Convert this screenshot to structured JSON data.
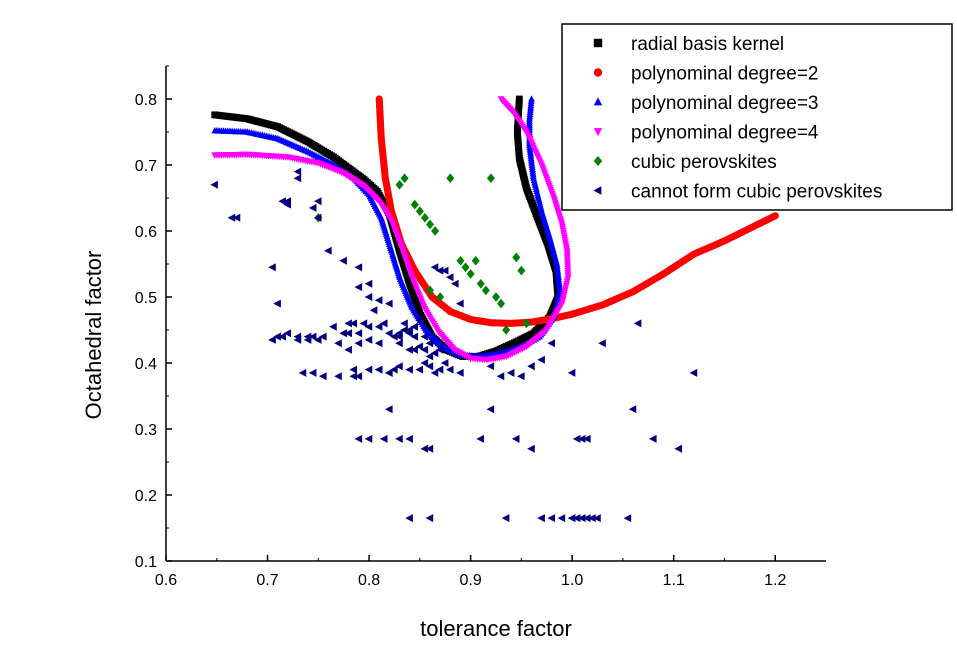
{
  "chart_data": {
    "type": "scatter",
    "xlabel": "tolerance factor",
    "ylabel": "Octahedral factor",
    "xlim": [
      0.6,
      1.25
    ],
    "ylim": [
      0.1,
      0.85
    ],
    "x_ticks": [
      "0.6",
      "0.7",
      "0.8",
      "0.9",
      "1.0",
      "1.1",
      "1.2"
    ],
    "y_ticks": [
      "0.1",
      "0.2",
      "0.3",
      "0.4",
      "0.5",
      "0.6",
      "0.7",
      "0.8"
    ],
    "grid": false,
    "legend_position": "top-right",
    "series": [
      {
        "name": "radial basis kernel",
        "marker": "square",
        "color": "#000000",
        "segments": [
          [
            [
              0.648,
              0.776
            ],
            [
              0.68,
              0.77
            ],
            [
              0.71,
              0.758
            ],
            [
              0.74,
              0.735
            ],
            [
              0.765,
              0.712
            ],
            [
              0.78,
              0.695
            ],
            [
              0.795,
              0.678
            ],
            [
              0.808,
              0.66
            ],
            [
              0.82,
              0.625
            ],
            [
              0.83,
              0.57
            ],
            [
              0.84,
              0.52
            ],
            [
              0.85,
              0.475
            ],
            [
              0.862,
              0.44
            ],
            [
              0.876,
              0.42
            ],
            [
              0.892,
              0.41
            ],
            [
              0.908,
              0.41
            ],
            [
              0.925,
              0.418
            ],
            [
              0.945,
              0.432
            ],
            [
              0.962,
              0.445
            ],
            [
              0.978,
              0.47
            ],
            [
              0.986,
              0.5
            ],
            [
              0.984,
              0.54
            ],
            [
              0.976,
              0.58
            ],
            [
              0.966,
              0.62
            ],
            [
              0.955,
              0.665
            ],
            [
              0.948,
              0.71
            ],
            [
              0.946,
              0.75
            ],
            [
              0.948,
              0.8
            ]
          ]
        ]
      },
      {
        "name": "polynominal degree=2",
        "marker": "circle",
        "color": "#ff0000",
        "segments": [
          [
            [
              0.81,
              0.8
            ],
            [
              0.812,
              0.74
            ],
            [
              0.816,
              0.68
            ],
            [
              0.822,
              0.63
            ],
            [
              0.832,
              0.58
            ],
            [
              0.845,
              0.54
            ],
            [
              0.862,
              0.5
            ],
            [
              0.88,
              0.478
            ],
            [
              0.9,
              0.466
            ],
            [
              0.92,
              0.461
            ],
            [
              0.94,
              0.46
            ],
            [
              0.96,
              0.462
            ],
            [
              0.98,
              0.467
            ],
            [
              1.0,
              0.474
            ],
            [
              1.03,
              0.488
            ],
            [
              1.06,
              0.508
            ],
            [
              1.09,
              0.535
            ],
            [
              1.12,
              0.565
            ],
            [
              1.15,
              0.585
            ],
            [
              1.2,
              0.623
            ]
          ]
        ]
      },
      {
        "name": "polynominal degree=3",
        "marker": "triangle-up",
        "color": "#0000ff",
        "segments": [
          [
            [
              0.648,
              0.752
            ],
            [
              0.68,
              0.75
            ],
            [
              0.71,
              0.74
            ],
            [
              0.74,
              0.72
            ],
            [
              0.765,
              0.7
            ],
            [
              0.785,
              0.68
            ],
            [
              0.8,
              0.655
            ],
            [
              0.812,
              0.62
            ],
            [
              0.82,
              0.58
            ],
            [
              0.83,
              0.53
            ],
            [
              0.842,
              0.485
            ],
            [
              0.856,
              0.45
            ],
            [
              0.872,
              0.425
            ],
            [
              0.89,
              0.412
            ],
            [
              0.91,
              0.41
            ],
            [
              0.93,
              0.415
            ],
            [
              0.95,
              0.425
            ],
            [
              0.968,
              0.44
            ],
            [
              0.982,
              0.47
            ],
            [
              0.988,
              0.51
            ],
            [
              0.985,
              0.55
            ],
            [
              0.978,
              0.59
            ],
            [
              0.97,
              0.63
            ],
            [
              0.962,
              0.68
            ],
            [
              0.958,
              0.73
            ],
            [
              0.958,
              0.77
            ],
            [
              0.96,
              0.8
            ]
          ]
        ]
      },
      {
        "name": "polynominal degree=4",
        "marker": "triangle-down",
        "color": "#ff00ff",
        "segments": [
          [
            [
              0.648,
              0.715
            ],
            [
              0.68,
              0.716
            ],
            [
              0.72,
              0.712
            ],
            [
              0.75,
              0.703
            ],
            [
              0.775,
              0.688
            ],
            [
              0.795,
              0.668
            ],
            [
              0.81,
              0.645
            ],
            [
              0.822,
              0.615
            ],
            [
              0.832,
              0.575
            ],
            [
              0.842,
              0.53
            ],
            [
              0.854,
              0.485
            ],
            [
              0.868,
              0.448
            ],
            [
              0.884,
              0.42
            ],
            [
              0.9,
              0.407
            ],
            [
              0.916,
              0.405
            ],
            [
              0.935,
              0.41
            ],
            [
              0.955,
              0.425
            ],
            [
              0.975,
              0.45
            ],
            [
              0.99,
              0.49
            ],
            [
              0.996,
              0.53
            ],
            [
              0.995,
              0.57
            ],
            [
              0.99,
              0.61
            ],
            [
              0.982,
              0.65
            ],
            [
              0.97,
              0.7
            ],
            [
              0.955,
              0.75
            ],
            [
              0.942,
              0.78
            ],
            [
              0.93,
              0.8
            ]
          ]
        ]
      },
      {
        "name": "cubic perovskites",
        "marker": "diamond",
        "color": "#008000",
        "x": [
          0.75,
          0.83,
          0.835,
          0.845,
          0.85,
          0.855,
          0.86,
          0.865,
          0.88,
          0.89,
          0.895,
          0.9,
          0.905,
          0.91,
          0.915,
          0.92,
          0.925,
          0.93,
          0.935,
          0.945,
          0.95,
          0.955,
          0.86,
          0.87
        ],
        "y": [
          0.62,
          0.67,
          0.68,
          0.64,
          0.63,
          0.62,
          0.61,
          0.6,
          0.68,
          0.555,
          0.545,
          0.535,
          0.555,
          0.52,
          0.51,
          0.68,
          0.5,
          0.49,
          0.45,
          0.56,
          0.54,
          0.46,
          0.51,
          0.5
        ]
      },
      {
        "name": "cannot form cubic perovskites",
        "marker": "triangle-left",
        "color": "#00007f",
        "x": [
          0.648,
          0.665,
          0.67,
          0.705,
          0.71,
          0.715,
          0.72,
          0.73,
          0.73,
          0.72,
          0.745,
          0.75,
          0.75,
          0.76,
          0.775,
          0.79,
          0.79,
          0.8,
          0.8,
          0.81,
          0.805,
          0.82,
          0.83,
          0.835,
          0.84,
          0.845,
          0.85,
          0.855,
          0.86,
          0.865,
          0.87,
          0.875,
          0.88,
          0.885,
          0.89,
          0.78,
          0.785,
          0.795,
          0.8,
          0.81,
          0.815,
          0.825,
          0.83,
          0.835,
          0.84,
          0.845,
          0.85,
          0.855,
          0.86,
          0.865,
          0.87,
          0.71,
          0.73,
          0.74,
          0.755,
          0.765,
          0.775,
          0.78,
          0.79,
          0.8,
          0.81,
          0.82,
          0.83,
          0.84,
          0.845,
          0.705,
          0.715,
          0.72,
          0.73,
          0.74,
          0.745,
          0.75,
          0.77,
          0.78,
          0.79,
          0.735,
          0.745,
          0.755,
          0.77,
          0.785,
          0.79,
          0.81,
          0.82,
          0.825,
          0.83,
          0.785,
          0.8,
          0.81,
          0.82,
          0.84,
          0.85,
          0.855,
          0.86,
          0.865,
          0.87,
          0.875,
          0.88,
          0.89,
          0.92,
          0.93,
          0.94,
          0.95,
          0.96,
          0.97,
          1.0,
          1.03,
          1.065,
          1.12,
          0.82,
          0.92,
          0.98,
          1.06,
          0.79,
          0.8,
          0.815,
          0.83,
          0.84,
          0.91,
          0.945,
          0.96,
          1.005,
          1.01,
          1.015,
          1.08,
          1.105,
          0.855,
          0.86,
          0.84,
          0.86,
          0.935,
          0.98,
          0.99,
          1.0,
          1.005,
          1.015,
          1.02,
          1.025,
          1.055,
          0.97,
          1.0,
          1.01
        ],
        "y": [
          0.67,
          0.62,
          0.62,
          0.545,
          0.49,
          0.645,
          0.64,
          0.68,
          0.69,
          0.645,
          0.635,
          0.645,
          0.62,
          0.57,
          0.555,
          0.545,
          0.515,
          0.52,
          0.5,
          0.495,
          0.48,
          0.49,
          0.44,
          0.46,
          0.45,
          0.455,
          0.465,
          0.44,
          0.43,
          0.545,
          0.54,
          0.54,
          0.53,
          0.52,
          0.49,
          0.46,
          0.46,
          0.46,
          0.455,
          0.455,
          0.46,
          0.44,
          0.445,
          0.45,
          0.445,
          0.44,
          0.425,
          0.42,
          0.41,
          0.415,
          0.42,
          0.44,
          0.44,
          0.44,
          0.44,
          0.455,
          0.445,
          0.445,
          0.445,
          0.435,
          0.43,
          0.445,
          0.43,
          0.42,
          0.42,
          0.435,
          0.44,
          0.445,
          0.435,
          0.435,
          0.44,
          0.435,
          0.43,
          0.42,
          0.43,
          0.385,
          0.385,
          0.38,
          0.38,
          0.39,
          0.38,
          0.39,
          0.385,
          0.39,
          0.395,
          0.38,
          0.39,
          0.39,
          0.385,
          0.39,
          0.39,
          0.4,
          0.395,
          0.385,
          0.39,
          0.4,
          0.39,
          0.385,
          0.395,
          0.38,
          0.385,
          0.38,
          0.395,
          0.405,
          0.385,
          0.43,
          0.46,
          0.385,
          0.33,
          0.33,
          0.43,
          0.33,
          0.285,
          0.285,
          0.285,
          0.285,
          0.285,
          0.285,
          0.285,
          0.27,
          0.285,
          0.285,
          0.285,
          0.285,
          0.27,
          0.27,
          0.27,
          0.165,
          0.165,
          0.165,
          0.165,
          0.165,
          0.165,
          0.165,
          0.165,
          0.165,
          0.165,
          0.165,
          0.165,
          0.165,
          0.165
        ]
      }
    ]
  }
}
